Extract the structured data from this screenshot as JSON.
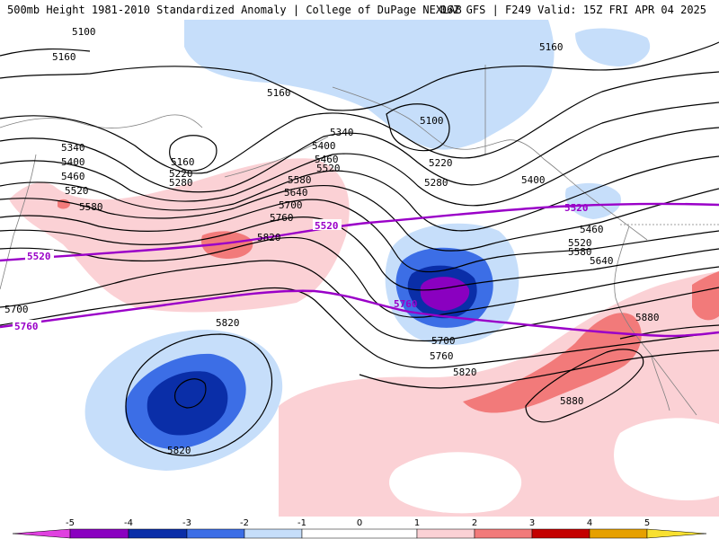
{
  "title": {
    "left": "500mb Height 1981-2010 Standardized Anomaly | College of DuPage NEXLAB",
    "right": "06Z GFS | F249 Valid: 15Z FRI APR 04 2025"
  },
  "colors": {
    "neg5": "#e040e0",
    "neg4": "#8a00c0",
    "neg3": "#0a2ea8",
    "neg2": "#3c6ee6",
    "neg1": "#c6defa",
    "pos1": "#fbd1d5",
    "pos2": "#f27a7a",
    "pos3": "#c40000",
    "pos4": "#e6a000",
    "pos5": "#f8e030",
    "contour": "#000000",
    "thickness": "#9a00c8",
    "coast": "#808080"
  },
  "height_labels": [
    "5100",
    "5160",
    "5160",
    "5100",
    "5160",
    "5160",
    "5220",
    "5280",
    "5340",
    "5400",
    "5460",
    "5520",
    "5580",
    "5640",
    "5700",
    "5760",
    "5820",
    "5820",
    "5820",
    "5280",
    "5340",
    "5400",
    "5460",
    "5520",
    "5580",
    "5640",
    "5700",
    "5760",
    "5820",
    "5880",
    "5880",
    "5220",
    "5400",
    "5460",
    "5520",
    "5580",
    "5640",
    "5700",
    "5760",
    "5820"
  ],
  "thickness_labels": [
    "5520",
    "5520",
    "5520",
    "5760",
    "5760"
  ],
  "legend": {
    "ticks": [
      "-5",
      "-4",
      "-3",
      "-2",
      "-1",
      "0",
      "1",
      "2",
      "3",
      "4",
      "5"
    ]
  }
}
